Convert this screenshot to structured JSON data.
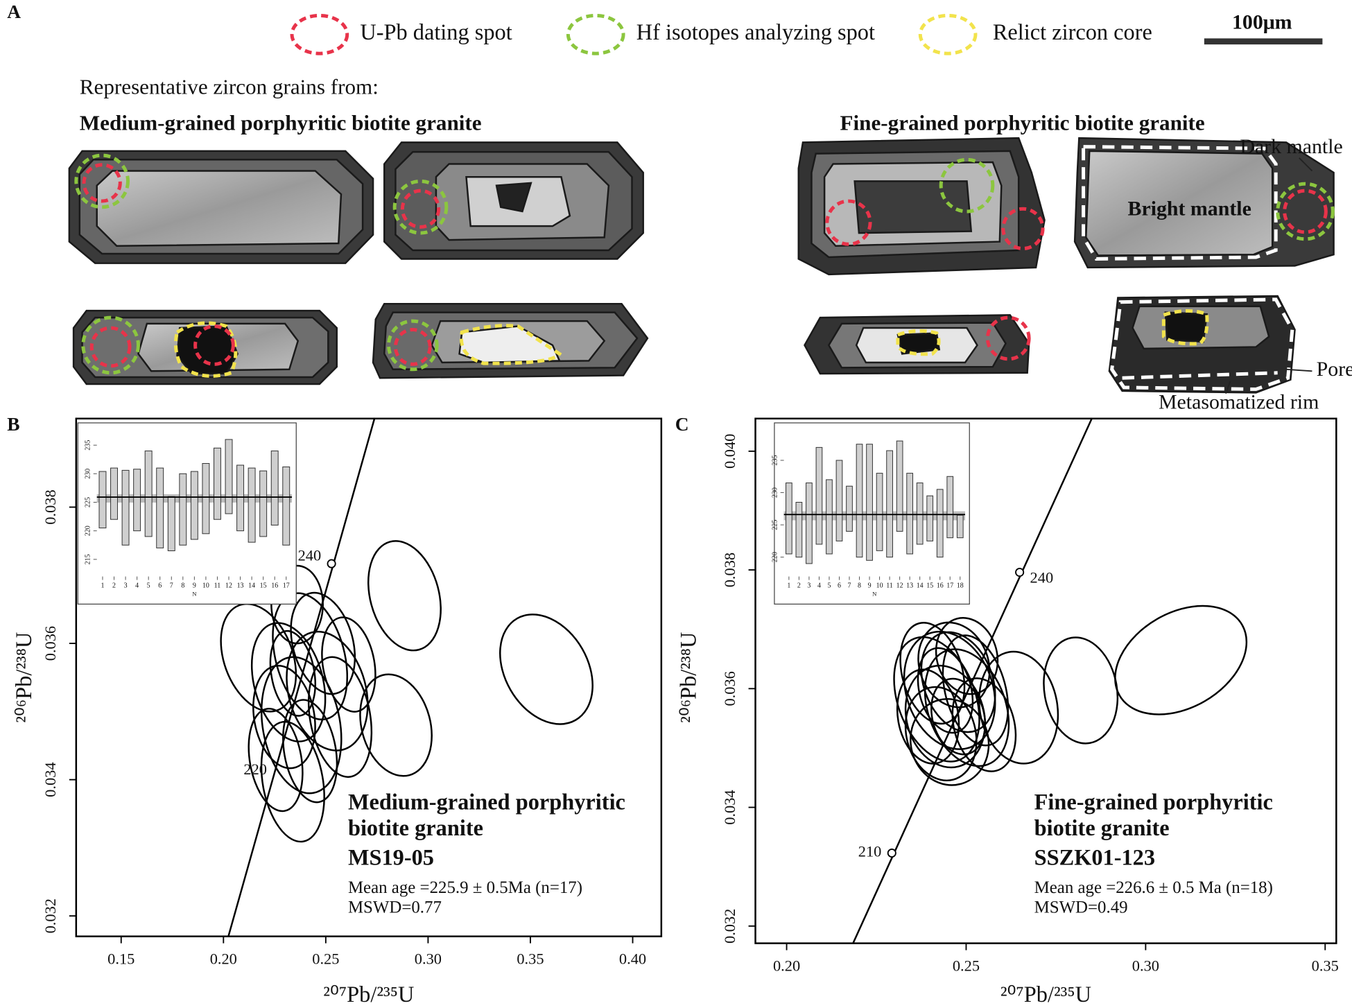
{
  "panel_a": {
    "label": "A",
    "legend": [
      {
        "text": "U-Pb dating spot",
        "color": "#e8334a"
      },
      {
        "text": "Hf isotopes analyzing spot",
        "color": "#8cc63f"
      },
      {
        "text": "Relict zircon core",
        "color": "#f2e34c"
      }
    ],
    "scale_bar": "100μm",
    "intro": "Representative zircon grains from:",
    "groups": [
      "Medium-grained porphyritic biotite granite",
      "Fine-grained porphyritic biotite granite"
    ],
    "annotations": [
      "Dark mantle",
      "Bright mantle",
      "Pores",
      "Metasomatized rim"
    ]
  },
  "chart_data": [
    {
      "type": "concordia",
      "label": "B",
      "xlabel": "²⁰⁷Pb/²³⁵U",
      "ylabel": "²⁰⁶Pb/²³⁸U",
      "color": "#000000",
      "xlim": [
        0.128,
        0.414
      ],
      "ylim": [
        0.0317,
        0.0393
      ],
      "xticks": [
        0.15,
        {
          "value": 0.2,
          "label": "0.20"
        },
        0.25,
        {
          "value": 0.3,
          "label": "0.30"
        },
        0.35,
        {
          "value": 0.4,
          "label": "0.40"
        }
      ],
      "yticks": [
        0.032,
        0.034,
        0.036,
        0.038
      ],
      "concordia": {
        "x": [
          0.2024,
          0.2738
        ],
        "y": [
          0.0317,
          0.0393
        ]
      },
      "age_markers": [
        {
          "age": 240,
          "x": 0.2528,
          "y": 0.03717,
          "circle": true
        },
        {
          "age": 220,
          "x": 0.2263,
          "y": 0.03423,
          "circle": false
        }
      ],
      "ellipses": {
        "x": [
          0.2171,
          0.2318,
          0.2381,
          0.2339,
          0.2423,
          0.2507,
          0.2297,
          0.236,
          0.257,
          0.2423,
          0.2885,
          0.2843,
          0.2255,
          0.2486,
          0.2612,
          0.2339,
          0.3578
        ],
        "y": [
          0.03579,
          0.03543,
          0.0348,
          0.03397,
          0.03581,
          0.0353,
          0.03492,
          0.03657,
          0.03492,
          0.03442,
          0.0367,
          0.0348,
          0.03429,
          0.036,
          0.03569,
          0.03556,
          0.03562
        ],
        "sx": [
          0.0168,
          0.0168,
          0.0189,
          0.0147,
          0.0168,
          0.0189,
          0.0147,
          0.0126,
          0.0147,
          0.0126,
          0.0168,
          0.0168,
          0.0126,
          0.0147,
          0.0126,
          0.0105,
          0.0202
        ],
        "sy": [
          0.00082,
          0.00089,
          0.00101,
          0.00089,
          0.00095,
          0.00089,
          0.00076,
          0.00057,
          0.00089,
          0.00076,
          0.00082,
          0.00076,
          0.00076,
          0.00076,
          0.0007,
          0.00063,
          0.00086
        ],
        "angle": [
          -20,
          -15,
          -10,
          -10,
          -15,
          -15,
          -10,
          0,
          -10,
          -10,
          -15,
          -15,
          -10,
          -15,
          -10,
          -10,
          -30
        ]
      },
      "annotation": {
        "title": [
          "Medium-grained porphyritic",
          "biotite granite",
          "MS19-05"
        ],
        "lines": [
          "Mean age =225.9 ± 0.5Ma (n=17)",
          "MSWD=0.77"
        ]
      },
      "inset": {
        "type": "bar",
        "xlabel": "N",
        "xticks": [
          1,
          2,
          3,
          4,
          5,
          6,
          7,
          8,
          9,
          10,
          11,
          12,
          13,
          14,
          15,
          16,
          17
        ],
        "low": [
          220.5,
          222.0,
          217.5,
          220.0,
          219.0,
          217.0,
          216.5,
          217.5,
          218.5,
          219.5,
          222.0,
          223.0,
          220.0,
          218.0,
          219.0,
          221.0,
          217.5
        ],
        "high": [
          230.4,
          231.0,
          230.6,
          230.8,
          234.0,
          231.0,
          226.0,
          230.0,
          230.4,
          231.8,
          234.5,
          236.0,
          231.5,
          231.0,
          230.5,
          234.0,
          231.2
        ],
        "ylim": [
          212,
          238
        ],
        "yticks": [
          215,
          220,
          225,
          230,
          235
        ],
        "mean": 225.9,
        "mean_err": 0.5
      }
    },
    {
      "type": "concordia",
      "label": "C",
      "xlabel": "²⁰⁷Pb/²³⁵U",
      "ylabel": "²⁰⁶Pb/²³⁸U",
      "color": "#000000",
      "xlim": [
        0.1913,
        0.3531
      ],
      "ylim": [
        0.03171,
        0.04055
      ],
      "xticks": [
        {
          "value": 0.2,
          "label": "0.20"
        },
        0.25,
        {
          "value": 0.3,
          "label": "0.30"
        },
        0.35
      ],
      "yticks": [
        0.032,
        0.034,
        0.036,
        0.038,
        {
          "value": 0.04,
          "label": "0.040"
        }
      ],
      "concordia": {
        "x": [
          0.2185,
          0.285
        ],
        "y": [
          0.03171,
          0.04055
        ]
      },
      "age_markers": [
        {
          "age": 240,
          "x": 0.2649,
          "y": 0.03796,
          "circle": true
        },
        {
          "age": 210,
          "x": 0.2293,
          "y": 0.03323,
          "circle": true
        }
      ],
      "ellipses": {
        "x": [
          0.2418,
          0.2454,
          0.2442,
          0.2478,
          0.243,
          0.2502,
          0.2406,
          0.2466,
          0.2526,
          0.2454,
          0.2394,
          0.2502,
          0.2442,
          0.255,
          0.2646,
          0.2819,
          0.3098,
          0.2478
        ],
        "y": [
          0.03582,
          0.03597,
          0.03553,
          0.03611,
          0.03524,
          0.03568,
          0.03626,
          0.0364,
          0.03597,
          0.0351,
          0.03553,
          0.03655,
          0.03597,
          0.03539,
          0.03568,
          0.03597,
          0.03648,
          0.03553
        ],
        "sx": [
          0.0108,
          0.012,
          0.0108,
          0.0096,
          0.0096,
          0.0108,
          0.0084,
          0.0096,
          0.0084,
          0.0108,
          0.0084,
          0.0084,
          0.0072,
          0.0084,
          0.0108,
          0.0101,
          0.0197,
          0.0072
        ],
        "sy": [
          0.00109,
          0.00102,
          0.00087,
          0.00087,
          0.0008,
          0.00102,
          0.00087,
          0.00073,
          0.00095,
          0.00073,
          0.0008,
          0.00065,
          0.00073,
          0.0008,
          0.00095,
          0.0009,
          0.0008,
          0.00065
        ],
        "angle": [
          -20,
          -20,
          -15,
          -20,
          -15,
          -20,
          -15,
          -20,
          -15,
          -15,
          -10,
          -15,
          -15,
          -15,
          -10,
          -10,
          -30,
          -15
        ]
      },
      "annotation": {
        "title": [
          "Fine-grained porphyritic",
          "biotite granite",
          "SSZK01-123"
        ],
        "lines": [
          "Mean age =226.6 ± 0.5 Ma (n=18)",
          "MSWD=0.49"
        ]
      },
      "inset": {
        "type": "bar",
        "xlabel": "N",
        "xticks": [
          1,
          2,
          3,
          4,
          5,
          6,
          7,
          8,
          9,
          10,
          11,
          12,
          13,
          14,
          15,
          16,
          17,
          18
        ],
        "low": [
          220.5,
          220.0,
          219.0,
          222.0,
          220.5,
          222.5,
          224.0,
          220.0,
          219.5,
          221.0,
          220.0,
          224.0,
          220.5,
          222.0,
          222.5,
          220.0,
          223.0,
          223.0
        ],
        "high": [
          231.5,
          228.5,
          231.5,
          237.0,
          232.0,
          235.0,
          231.0,
          237.5,
          237.5,
          233.0,
          236.5,
          238.0,
          233.0,
          231.5,
          229.5,
          230.5,
          232.5,
          226.5
        ],
        "ylim": [
          217,
          240
        ],
        "yticks": [
          220,
          225,
          230,
          235
        ],
        "mean": 226.6,
        "mean_err": 0.5
      }
    }
  ]
}
